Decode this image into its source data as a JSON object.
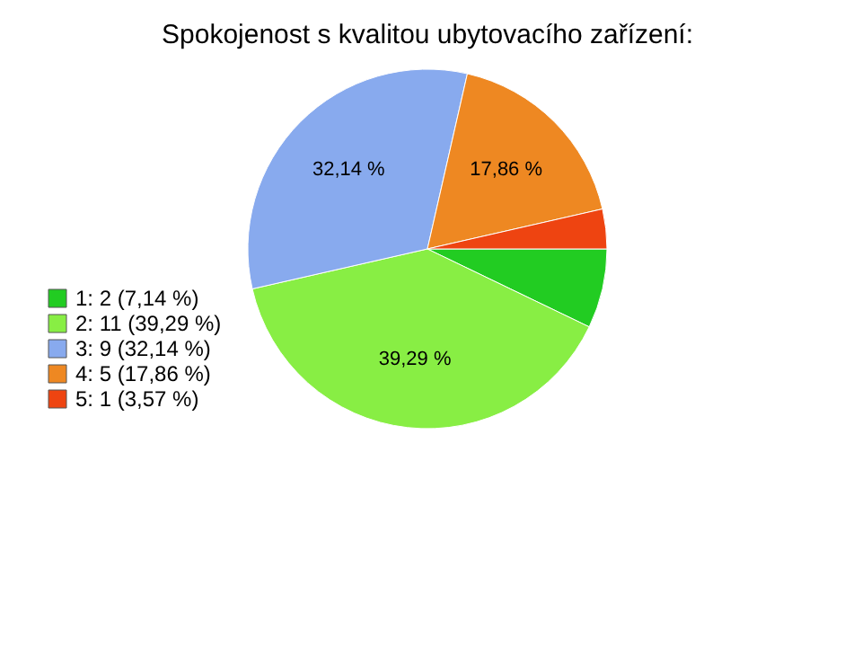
{
  "chart_data": {
    "type": "pie",
    "title": "Spokojenost s kvalitou ubytovacího zařízení:",
    "categories": [
      "1: 2 (7,14 %)",
      "2: 11 (39,29 %)",
      "3: 9 (32,14 %)",
      "4: 5 (17,86 %)",
      "5: 1 (3,57 %)"
    ],
    "values": [
      7.14,
      39.29,
      32.14,
      17.86,
      3.57
    ],
    "colors": [
      "#22cc22",
      "#88ee44",
      "#88aaee",
      "#ee8822",
      "#ee4411"
    ],
    "value_labels": [
      null,
      "39,29 %",
      "32,14 %",
      "17,86 %",
      null
    ],
    "legend": "bottom left"
  }
}
